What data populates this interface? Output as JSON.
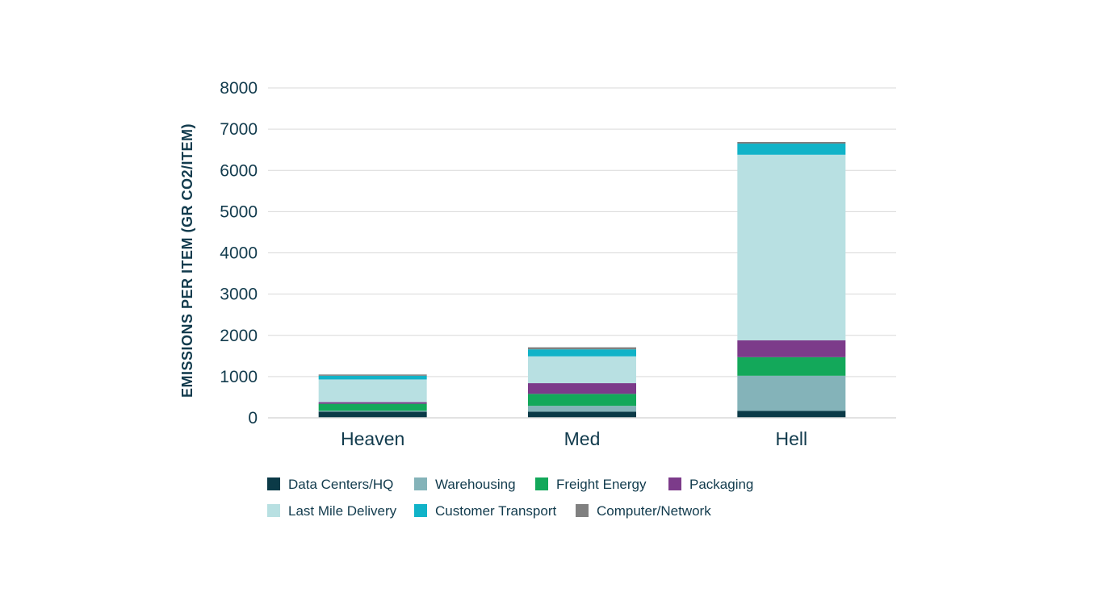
{
  "chart_data": {
    "type": "bar",
    "stacked": true,
    "title": "",
    "xlabel": "",
    "ylabel": "EMISSIONS PER ITEM (GR CO2/ITEM)",
    "ylim": [
      0,
      8000
    ],
    "yticks": [
      0,
      1000,
      2000,
      3000,
      4000,
      5000,
      6000,
      7000,
      8000
    ],
    "grid": true,
    "legend_position": "bottom",
    "categories": [
      "Heaven",
      "Med",
      "Hell"
    ],
    "series": [
      {
        "name": "Data Centers/HQ",
        "color": "#0b3a47",
        "values": [
          150,
          150,
          170
        ]
      },
      {
        "name": "Warehousing",
        "color": "#84b3b9",
        "values": [
          20,
          140,
          850
        ]
      },
      {
        "name": "Freight Energy",
        "color": "#13a85a",
        "values": [
          170,
          290,
          450
        ]
      },
      {
        "name": "Packaging",
        "color": "#7c3b8a",
        "values": [
          40,
          260,
          410
        ]
      },
      {
        "name": "Last Mile Delivery",
        "color": "#b8e0e2",
        "values": [
          550,
          650,
          4500
        ]
      },
      {
        "name": "Customer Transport",
        "color": "#11b3c8",
        "values": [
          90,
          170,
          270
        ]
      },
      {
        "name": "Computer/Network",
        "color": "#808080",
        "values": [
          30,
          50,
          40
        ]
      }
    ]
  }
}
